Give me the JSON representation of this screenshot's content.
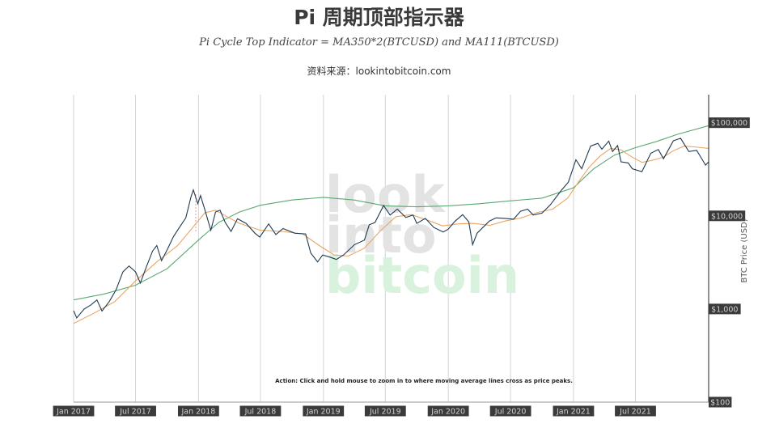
{
  "header": {
    "title": "Pi 周期顶部指示器",
    "formula": "Pi Cycle Top Indicator = MA350*2(BTCUSD) and MA111(BTCUSD)",
    "source": "资料来源：lookintobitcoin.com"
  },
  "watermark": {
    "line1": "look",
    "line2": "into",
    "line3": "bitcoin"
  },
  "colors": {
    "price": "#1e3a52",
    "ma111": "#e8a563",
    "ma350x2": "#5aa870",
    "grid": "#d4d4d4",
    "axis_label_bg": "#3b3b3b",
    "axis_label_text": "#d0d0d0",
    "watermark_gray": "#e3e3e3",
    "watermark_green": "#d9f2de"
  },
  "chart_data": {
    "type": "line",
    "ylabel": "BTC Price (USD)",
    "yscale": "log",
    "ylim": [
      100,
      200000
    ],
    "xlim": [
      "2017-01-01",
      "2022-01-31"
    ],
    "annotation": "Action: Click and hold mouse to zoom in to where moving average lines cross as price peaks.",
    "x_ticks": [
      {
        "date": "2017-01-01",
        "label": "Jan 2017"
      },
      {
        "date": "2017-07-01",
        "label": "Jul 2017"
      },
      {
        "date": "2018-01-01",
        "label": "Jan 2018"
      },
      {
        "date": "2018-07-01",
        "label": "Jul 2018"
      },
      {
        "date": "2019-01-01",
        "label": "Jan 2019"
      },
      {
        "date": "2019-07-01",
        "label": "Jul 2019"
      },
      {
        "date": "2020-01-01",
        "label": "Jan 2020"
      },
      {
        "date": "2020-07-01",
        "label": "Jul 2020"
      },
      {
        "date": "2021-01-01",
        "label": "Jan 2021"
      },
      {
        "date": "2021-07-01",
        "label": "Jul 2021"
      }
    ],
    "y_ticks": [
      {
        "value": 100,
        "label": "$100"
      },
      {
        "value": 1000,
        "label": "$1,000"
      },
      {
        "value": 10000,
        "label": "$10,000"
      },
      {
        "value": 100000,
        "label": "$100,000"
      }
    ],
    "series": [
      {
        "key": "price",
        "points": [
          [
            "2017-01-01",
            960
          ],
          [
            "2017-01-10",
            800
          ],
          [
            "2017-02-01",
            1000
          ],
          [
            "2017-02-20",
            1100
          ],
          [
            "2017-03-10",
            1250
          ],
          [
            "2017-03-25",
            950
          ],
          [
            "2017-04-15",
            1200
          ],
          [
            "2017-05-05",
            1600
          ],
          [
            "2017-05-25",
            2500
          ],
          [
            "2017-06-12",
            2900
          ],
          [
            "2017-07-01",
            2500
          ],
          [
            "2017-07-15",
            1900
          ],
          [
            "2017-08-01",
            2800
          ],
          [
            "2017-08-20",
            4200
          ],
          [
            "2017-09-01",
            4800
          ],
          [
            "2017-09-15",
            3300
          ],
          [
            "2017-10-01",
            4300
          ],
          [
            "2017-10-20",
            6000
          ],
          [
            "2017-11-05",
            7400
          ],
          [
            "2017-11-25",
            9500
          ],
          [
            "2017-12-10",
            16000
          ],
          [
            "2017-12-17",
            19000
          ],
          [
            "2017-12-30",
            13500
          ],
          [
            "2018-01-07",
            16500
          ],
          [
            "2018-01-20",
            11500
          ],
          [
            "2018-02-06",
            7000
          ],
          [
            "2018-02-20",
            11000
          ],
          [
            "2018-03-05",
            11500
          ],
          [
            "2018-03-20",
            8500
          ],
          [
            "2018-04-06",
            6800
          ],
          [
            "2018-04-25",
            9300
          ],
          [
            "2018-05-20",
            8300
          ],
          [
            "2018-06-15",
            6500
          ],
          [
            "2018-06-29",
            5900
          ],
          [
            "2018-07-25",
            8200
          ],
          [
            "2018-08-15",
            6300
          ],
          [
            "2018-09-05",
            7300
          ],
          [
            "2018-10-10",
            6500
          ],
          [
            "2018-11-10",
            6400
          ],
          [
            "2018-11-25",
            4000
          ],
          [
            "2018-12-15",
            3200
          ],
          [
            "2018-12-30",
            3800
          ],
          [
            "2019-01-20",
            3600
          ],
          [
            "2019-02-08",
            3400
          ],
          [
            "2019-03-01",
            3800
          ],
          [
            "2019-04-02",
            4900
          ],
          [
            "2019-05-01",
            5500
          ],
          [
            "2019-05-15",
            8000
          ],
          [
            "2019-06-01",
            8500
          ],
          [
            "2019-06-26",
            12900
          ],
          [
            "2019-07-15",
            10200
          ],
          [
            "2019-08-05",
            11800
          ],
          [
            "2019-08-30",
            9600
          ],
          [
            "2019-09-20",
            10200
          ],
          [
            "2019-10-01",
            8300
          ],
          [
            "2019-10-26",
            9400
          ],
          [
            "2019-11-20",
            7500
          ],
          [
            "2019-12-17",
            6700
          ],
          [
            "2020-01-01",
            7200
          ],
          [
            "2020-01-20",
            8700
          ],
          [
            "2020-02-12",
            10300
          ],
          [
            "2020-03-01",
            8600
          ],
          [
            "2020-03-12",
            4900
          ],
          [
            "2020-03-25",
            6500
          ],
          [
            "2020-04-30",
            8800
          ],
          [
            "2020-05-20",
            9500
          ],
          [
            "2020-06-15",
            9400
          ],
          [
            "2020-07-10",
            9200
          ],
          [
            "2020-07-30",
            11200
          ],
          [
            "2020-08-20",
            11800
          ],
          [
            "2020-09-05",
            10200
          ],
          [
            "2020-10-01",
            10700
          ],
          [
            "2020-10-25",
            13100
          ],
          [
            "2020-11-25",
            18500
          ],
          [
            "2020-12-17",
            23000
          ],
          [
            "2021-01-08",
            40000
          ],
          [
            "2021-01-25",
            32000
          ],
          [
            "2021-02-20",
            56000
          ],
          [
            "2021-03-13",
            60000
          ],
          [
            "2021-03-25",
            52000
          ],
          [
            "2021-04-14",
            63500
          ],
          [
            "2021-04-25",
            49000
          ],
          [
            "2021-05-10",
            57000
          ],
          [
            "2021-05-20",
            38000
          ],
          [
            "2021-06-10",
            37000
          ],
          [
            "2021-06-22",
            32000
          ],
          [
            "2021-07-20",
            29800
          ],
          [
            "2021-08-15",
            47000
          ],
          [
            "2021-09-06",
            51500
          ],
          [
            "2021-09-21",
            41000
          ],
          [
            "2021-10-20",
            64000
          ],
          [
            "2021-11-10",
            68000
          ],
          [
            "2021-12-04",
            49000
          ],
          [
            "2021-12-27",
            50500
          ],
          [
            "2022-01-10",
            41500
          ],
          [
            "2022-01-22",
            35000
          ],
          [
            "2022-01-31",
            38000
          ]
        ]
      },
      {
        "key": "ma111",
        "points": [
          [
            "2017-01-01",
            700
          ],
          [
            "2017-03-01",
            900
          ],
          [
            "2017-05-01",
            1200
          ],
          [
            "2017-07-01",
            2000
          ],
          [
            "2017-09-01",
            3200
          ],
          [
            "2017-11-01",
            4800
          ],
          [
            "2017-12-15",
            7500
          ],
          [
            "2018-01-20",
            10800
          ],
          [
            "2018-02-20",
            11500
          ],
          [
            "2018-03-25",
            9800
          ],
          [
            "2018-05-01",
            8300
          ],
          [
            "2018-07-01",
            7000
          ],
          [
            "2018-09-01",
            6800
          ],
          [
            "2018-11-01",
            6400
          ],
          [
            "2018-12-20",
            4800
          ],
          [
            "2019-02-01",
            3800
          ],
          [
            "2019-03-15",
            3700
          ],
          [
            "2019-05-01",
            4500
          ],
          [
            "2019-06-15",
            6800
          ],
          [
            "2019-08-01",
            9800
          ],
          [
            "2019-09-15",
            10300
          ],
          [
            "2019-11-01",
            9000
          ],
          [
            "2019-12-15",
            7800
          ],
          [
            "2020-02-01",
            8200
          ],
          [
            "2020-03-15",
            8300
          ],
          [
            "2020-05-01",
            7900
          ],
          [
            "2020-06-15",
            8800
          ],
          [
            "2020-08-01",
            9500
          ],
          [
            "2020-09-15",
            10800
          ],
          [
            "2020-11-01",
            11800
          ],
          [
            "2020-12-15",
            15500
          ],
          [
            "2021-01-15",
            23000
          ],
          [
            "2021-02-15",
            33000
          ],
          [
            "2021-03-20",
            44000
          ],
          [
            "2021-04-20",
            53000
          ],
          [
            "2021-05-20",
            51000
          ],
          [
            "2021-06-20",
            43000
          ],
          [
            "2021-07-20",
            37500
          ],
          [
            "2021-08-20",
            39500
          ],
          [
            "2021-09-20",
            42500
          ],
          [
            "2021-10-20",
            50000
          ],
          [
            "2021-11-20",
            56000
          ],
          [
            "2021-12-20",
            55000
          ],
          [
            "2022-01-31",
            53000
          ]
        ]
      },
      {
        "key": "ma350x2",
        "points": [
          [
            "2017-01-01",
            1250
          ],
          [
            "2017-04-01",
            1450
          ],
          [
            "2017-07-01",
            1800
          ],
          [
            "2017-10-01",
            2700
          ],
          [
            "2018-01-01",
            5500
          ],
          [
            "2018-03-01",
            8500
          ],
          [
            "2018-05-01",
            11000
          ],
          [
            "2018-07-01",
            13000
          ],
          [
            "2018-10-01",
            14800
          ],
          [
            "2019-01-01",
            15800
          ],
          [
            "2019-04-01",
            14800
          ],
          [
            "2019-07-01",
            12800
          ],
          [
            "2019-10-01",
            12500
          ],
          [
            "2020-01-01",
            12800
          ],
          [
            "2020-04-01",
            13500
          ],
          [
            "2020-07-01",
            14500
          ],
          [
            "2020-10-01",
            15500
          ],
          [
            "2021-01-01",
            20000
          ],
          [
            "2021-03-01",
            32000
          ],
          [
            "2021-05-01",
            45000
          ],
          [
            "2021-07-01",
            54000
          ],
          [
            "2021-09-01",
            63000
          ],
          [
            "2021-11-01",
            75000
          ],
          [
            "2022-01-31",
            93000
          ]
        ]
      }
    ]
  }
}
